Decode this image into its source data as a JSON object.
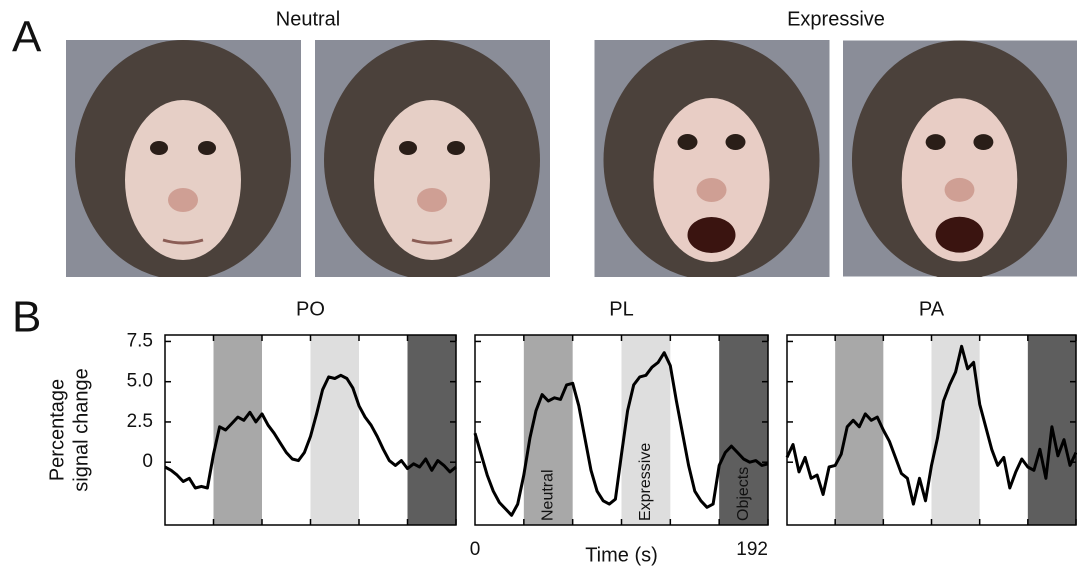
{
  "panel_a": {
    "letter": "A",
    "groups": [
      {
        "label": "Neutral"
      },
      {
        "label": "Expressive"
      }
    ]
  },
  "panel_b": {
    "letter": "B"
  },
  "chart_data": [
    {
      "type": "line",
      "title": "PO",
      "ylabel": [
        "Percentage",
        "signal change"
      ],
      "color": "#000000",
      "x": [
        0,
        4,
        8,
        12,
        16,
        20,
        24,
        28,
        32,
        36,
        40,
        44,
        48,
        52,
        56,
        60,
        64,
        68,
        72,
        76,
        80,
        84,
        88,
        92,
        96,
        100,
        104,
        108,
        112,
        116,
        120,
        124,
        128,
        132,
        136,
        140,
        144,
        148,
        152,
        156,
        160,
        164,
        168,
        172,
        176,
        180,
        184,
        188,
        192
      ],
      "values": [
        -0.3,
        -0.5,
        -0.8,
        -1.2,
        -1.0,
        -1.6,
        -1.5,
        -1.6,
        0.5,
        2.2,
        2.0,
        2.4,
        2.8,
        2.6,
        3.1,
        2.5,
        3.0,
        2.3,
        1.8,
        1.2,
        0.6,
        0.2,
        0.1,
        0.6,
        1.6,
        3.0,
        4.5,
        5.3,
        5.2,
        5.4,
        5.2,
        4.6,
        3.5,
        2.8,
        2.3,
        1.6,
        0.8,
        0.1,
        -0.2,
        0.1,
        -0.4,
        -0.1,
        -0.3,
        0.2,
        -0.5,
        0.1,
        -0.2,
        -0.6,
        -0.3
      ],
      "bands": [
        {
          "from": 32,
          "to": 64,
          "color": "#a8a8a8"
        },
        {
          "from": 96,
          "to": 128,
          "color": "#dedede"
        },
        {
          "from": 160,
          "to": 192,
          "color": "#5e5e5e"
        }
      ],
      "xlim": [
        0,
        192
      ],
      "ylim": [
        -3.9,
        7.9
      ],
      "yticks": [
        {
          "value": 0,
          "label": "0"
        },
        {
          "value": 2.5,
          "label": "2.5"
        },
        {
          "value": 5,
          "label": "5.0"
        },
        {
          "value": 7.5,
          "label": "7.5"
        }
      ]
    },
    {
      "type": "line",
      "title": "PL",
      "xlabel": "Time (s)",
      "color": "#000000",
      "x": [
        0,
        4,
        8,
        12,
        16,
        20,
        24,
        28,
        32,
        36,
        40,
        44,
        48,
        52,
        56,
        60,
        64,
        68,
        72,
        76,
        80,
        84,
        88,
        92,
        96,
        100,
        104,
        108,
        112,
        116,
        120,
        124,
        128,
        132,
        136,
        140,
        144,
        148,
        152,
        156,
        160,
        164,
        168,
        172,
        176,
        180,
        184,
        188,
        192
      ],
      "values": [
        1.8,
        0.5,
        -0.8,
        -1.8,
        -2.5,
        -2.9,
        -3.3,
        -2.6,
        -0.8,
        1.5,
        3.2,
        4.2,
        3.8,
        4.0,
        3.9,
        4.8,
        4.9,
        3.5,
        1.5,
        -0.5,
        -1.8,
        -2.4,
        -2.6,
        -2.3,
        0.5,
        3.2,
        4.8,
        5.3,
        5.4,
        5.9,
        6.2,
        6.8,
        6.0,
        3.8,
        1.8,
        -0.2,
        -1.8,
        -2.4,
        -2.8,
        -2.6,
        -0.2,
        0.6,
        1.0,
        0.6,
        0.2,
        0.0,
        0.1,
        -0.2,
        -0.1
      ],
      "bands": [
        {
          "from": 32,
          "to": 64,
          "color": "#a8a8a8",
          "label": "Neutral"
        },
        {
          "from": 96,
          "to": 128,
          "color": "#dedede",
          "label": "Expressive"
        },
        {
          "from": 160,
          "to": 192,
          "color": "#5e5e5e",
          "label": "Objects"
        }
      ],
      "xlim": [
        0,
        192
      ],
      "xticks": [
        0,
        192
      ],
      "ylim": [
        -3.9,
        7.9
      ],
      "yticks": [
        0,
        2.5,
        5,
        7.5
      ]
    },
    {
      "type": "line",
      "title": "PA",
      "color": "#000000",
      "x": [
        0,
        4,
        8,
        12,
        16,
        20,
        24,
        28,
        32,
        36,
        40,
        44,
        48,
        52,
        56,
        60,
        64,
        68,
        72,
        76,
        80,
        84,
        88,
        92,
        96,
        100,
        104,
        108,
        112,
        116,
        120,
        124,
        128,
        132,
        136,
        140,
        144,
        148,
        152,
        156,
        160,
        164,
        168,
        172,
        176,
        180,
        184,
        188,
        192
      ],
      "values": [
        0.3,
        1.1,
        -0.6,
        0.3,
        -1.0,
        -0.8,
        -2.0,
        -0.3,
        -0.2,
        0.5,
        2.2,
        2.6,
        2.2,
        3.0,
        2.6,
        2.8,
        2.0,
        1.3,
        0.3,
        -0.7,
        -1.0,
        -2.6,
        -1.0,
        -2.4,
        -0.2,
        1.5,
        3.8,
        4.8,
        5.6,
        7.2,
        5.8,
        6.2,
        3.6,
        2.2,
        0.8,
        -0.2,
        0.3,
        -1.6,
        -0.6,
        0.2,
        -0.3,
        -0.5,
        0.8,
        -1.0,
        2.2,
        0.4,
        1.4,
        -0.2,
        0.6
      ],
      "bands": [
        {
          "from": 32,
          "to": 64,
          "color": "#a8a8a8"
        },
        {
          "from": 96,
          "to": 128,
          "color": "#dedede"
        },
        {
          "from": 160,
          "to": 192,
          "color": "#5e5e5e"
        }
      ],
      "xlim": [
        0,
        192
      ],
      "ylim": [
        -3.9,
        7.9
      ],
      "yticks": [
        0,
        2.5,
        5,
        7.5
      ]
    }
  ]
}
